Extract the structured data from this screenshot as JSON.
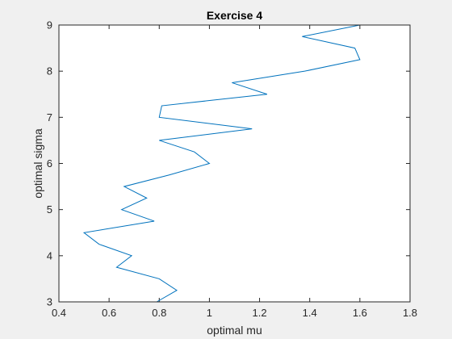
{
  "chart_data": {
    "type": "line",
    "title": "Exercise 4",
    "xlabel": "optimal mu",
    "ylabel": "optimal sigma",
    "xlim": [
      0.4,
      1.8
    ],
    "ylim": [
      3,
      9
    ],
    "xticks": [
      0.4,
      0.6,
      0.8,
      1.0,
      1.2,
      1.4,
      1.6,
      1.8
    ],
    "xtick_labels": [
      "0.4",
      "0.6",
      "0.8",
      "1",
      "1.2",
      "1.4",
      "1.6",
      "1.8"
    ],
    "yticks": [
      3,
      4,
      5,
      6,
      7,
      8,
      9
    ],
    "ytick_labels": [
      "3",
      "4",
      "5",
      "6",
      "7",
      "8",
      "9"
    ],
    "grid": false,
    "series": [
      {
        "color": "#0072BD",
        "x": [
          0.79,
          0.87,
          0.8,
          0.63,
          0.69,
          0.56,
          0.5,
          0.78,
          0.65,
          0.75,
          0.66,
          0.84,
          1.0,
          0.94,
          0.8,
          1.17,
          0.8,
          0.81,
          1.23,
          1.09,
          1.38,
          1.6,
          1.58,
          1.37,
          1.6
        ],
        "y": [
          3.0,
          3.25,
          3.5,
          3.75,
          4.0,
          4.25,
          4.5,
          4.75,
          5.0,
          5.25,
          5.5,
          5.75,
          6.0,
          6.25,
          6.5,
          6.75,
          7.0,
          7.25,
          7.5,
          7.75,
          8.0,
          8.25,
          8.5,
          8.75,
          9.0
        ]
      }
    ]
  }
}
